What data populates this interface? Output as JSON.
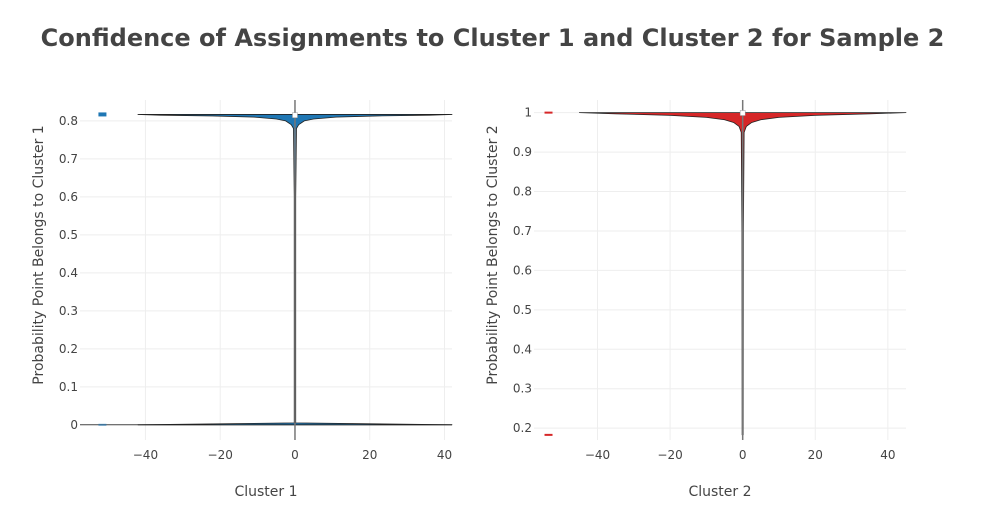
{
  "title": "Confidence of Assignments to Cluster 1 and Cluster 2 for Sample 2",
  "chart_data": [
    {
      "type": "violin",
      "name": "cluster-1",
      "color": "#1f77b4",
      "xlabel": "Cluster 1",
      "ylabel": "Probability Point Belongs to Cluster 1",
      "xlim": [
        -57.5,
        42
      ],
      "ylim": [
        -0.04,
        0.855
      ],
      "xticks": [
        -40,
        -20,
        0,
        20,
        40
      ],
      "yticks": [
        0,
        0.1,
        0.2,
        0.3,
        0.4,
        0.5,
        0.6,
        0.7,
        0.8
      ],
      "center_x": 0,
      "box_marker_x": -51.5,
      "data_min": 0,
      "data_max": 0.817,
      "median": 0.815,
      "violin_profile": [
        {
          "y": 0.817,
          "halfwidth": 42
        },
        {
          "y": 0.815,
          "halfwidth": 36
        },
        {
          "y": 0.813,
          "halfwidth": 22
        },
        {
          "y": 0.81,
          "halfwidth": 11
        },
        {
          "y": 0.805,
          "halfwidth": 5
        },
        {
          "y": 0.8,
          "halfwidth": 2.5
        },
        {
          "y": 0.79,
          "halfwidth": 1
        },
        {
          "y": 0.78,
          "halfwidth": 0.4
        },
        {
          "y": 0.6,
          "halfwidth": 0.2
        },
        {
          "y": 0.005,
          "halfwidth": 0.2
        },
        {
          "y": 0.0,
          "halfwidth": 42
        }
      ]
    },
    {
      "type": "violin",
      "name": "cluster-2",
      "color": "#d62728",
      "xlabel": "Cluster 2",
      "ylabel": "Probability Point Belongs to Cluster 2",
      "xlim": [
        -57.5,
        45
      ],
      "ylim": [
        0.17,
        1.032
      ],
      "xticks": [
        -40,
        -20,
        0,
        20,
        40
      ],
      "yticks": [
        0.2,
        0.3,
        0.4,
        0.5,
        0.6,
        0.7,
        0.8,
        0.9,
        1
      ],
      "center_x": 0,
      "box_marker_x": -53.5,
      "data_min": 0.183,
      "data_max": 1.0,
      "median": 0.999,
      "violin_profile": [
        {
          "y": 1.0,
          "halfwidth": 45
        },
        {
          "y": 0.997,
          "halfwidth": 35
        },
        {
          "y": 0.993,
          "halfwidth": 20
        },
        {
          "y": 0.988,
          "halfwidth": 10
        },
        {
          "y": 0.982,
          "halfwidth": 5
        },
        {
          "y": 0.975,
          "halfwidth": 2.5
        },
        {
          "y": 0.965,
          "halfwidth": 1
        },
        {
          "y": 0.95,
          "halfwidth": 0.4
        },
        {
          "y": 0.7,
          "halfwidth": 0.2
        },
        {
          "y": 0.183,
          "halfwidth": 0.15
        }
      ]
    }
  ]
}
